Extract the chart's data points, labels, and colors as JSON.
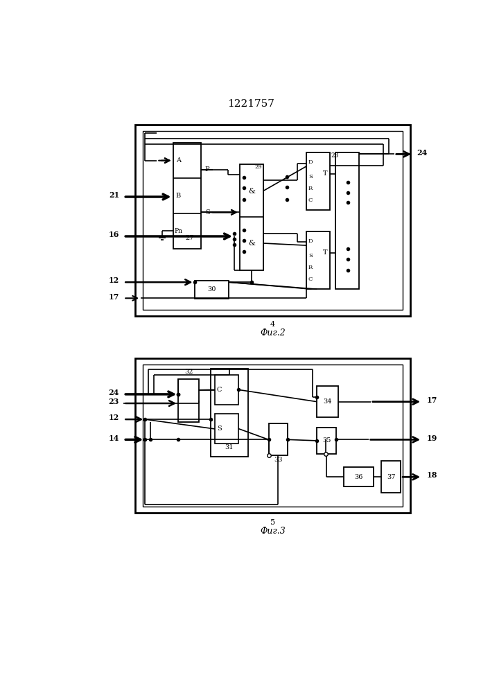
{
  "title": "1221757",
  "fig2_label": "4",
  "fig2_caption": "Фиг.2",
  "fig3_label": "5",
  "fig3_caption": "Фиг.3",
  "bg_color": "#ffffff",
  "line_color": "#000000"
}
